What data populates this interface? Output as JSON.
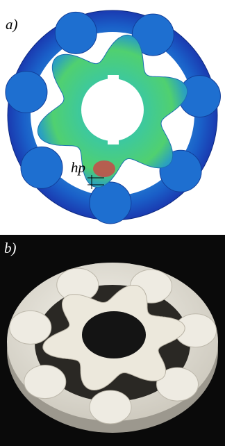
{
  "panels": [
    {
      "label": "a)"
    },
    {
      "label": "b)"
    }
  ],
  "annotation": "hp"
}
